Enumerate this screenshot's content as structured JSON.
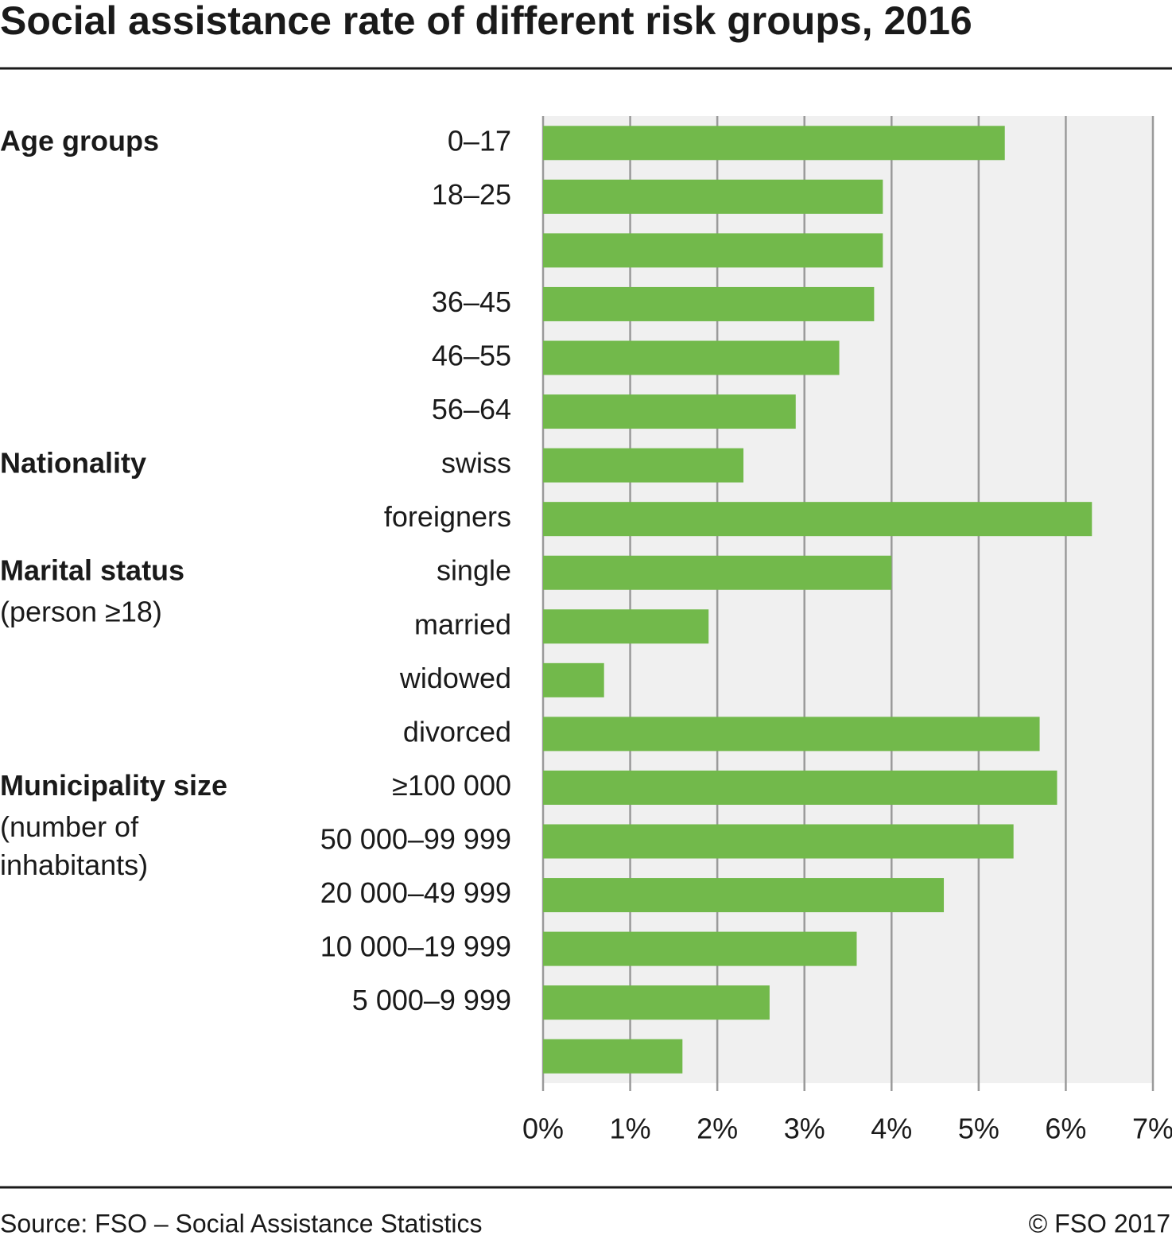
{
  "chart_data": {
    "type": "hbar",
    "title": "Social assistance rate of different risk groups, 2016",
    "categories": [
      "0–17",
      "18–25",
      null,
      "36–45",
      "46–55",
      "56–64",
      "swiss",
      "foreigners",
      "single",
      "married",
      "widowed",
      "divorced",
      "≥100 000",
      "50 000–99 999",
      "20 000–49 999",
      "10 000–19 999",
      "5 000–9 999",
      null
    ],
    "values": [
      5.3,
      3.9,
      3.9,
      3.8,
      3.4,
      2.9,
      2.3,
      6.3,
      4.0,
      1.9,
      0.7,
      5.7,
      5.9,
      5.4,
      4.6,
      3.6,
      2.6,
      1.6
    ],
    "group_labels": [
      "Age groups",
      null,
      null,
      null,
      null,
      null,
      "Nationality",
      null,
      "Marital status",
      null,
      null,
      null,
      "Municipality size",
      null,
      null,
      null,
      null,
      null
    ],
    "group_notes": [
      null,
      null,
      null,
      null,
      null,
      null,
      null,
      null,
      [
        "(person ≥18)"
      ],
      null,
      null,
      null,
      [
        "(number of",
        "inhabitants)"
      ],
      null,
      null,
      null,
      null,
      null
    ],
    "color": "#72b94b",
    "xlim": [
      0,
      7
    ],
    "xticks": [
      {
        "value": 0,
        "label": "0%"
      },
      {
        "value": 1,
        "label": "1%"
      },
      {
        "value": 2,
        "label": "2%"
      },
      {
        "value": 3,
        "label": "3%"
      },
      {
        "value": 4,
        "label": "4%"
      },
      {
        "value": 5,
        "label": "5%"
      },
      {
        "value": 6,
        "label": "6%"
      },
      {
        "value": 7,
        "label": "7%"
      }
    ],
    "grid": true,
    "source": "Source: FSO – Social Assistance Statistics",
    "copyright": "© FSO 2017"
  }
}
